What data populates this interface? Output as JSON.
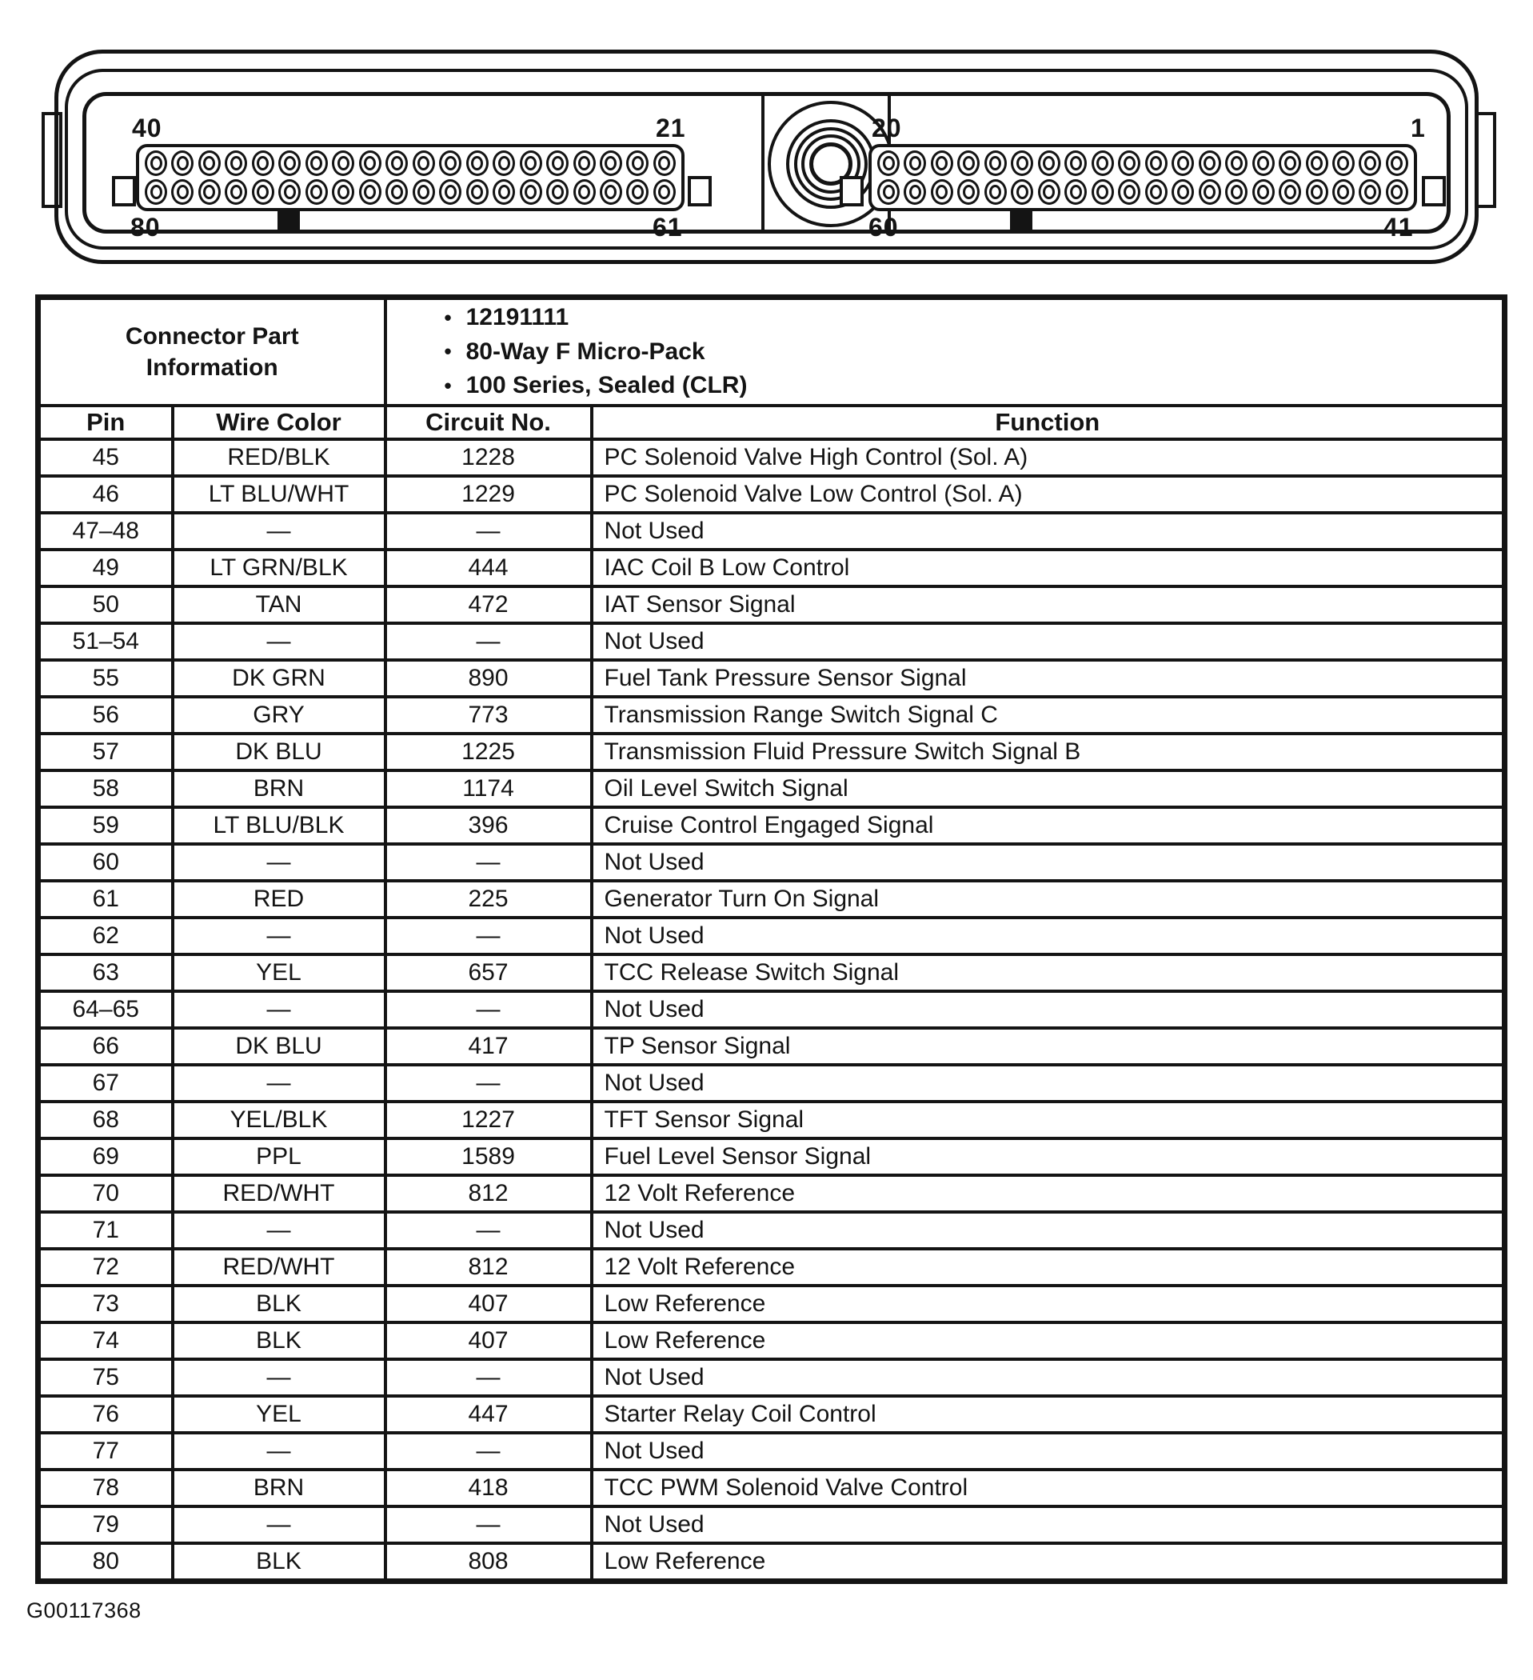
{
  "colors": {
    "ink": "#141414",
    "background": "#ffffff"
  },
  "connector": {
    "rows_per_block": 2,
    "pins_per_row": 20,
    "left_block": {
      "top_left": "40",
      "top_right": "21",
      "bottom_left": "80",
      "bottom_right": "61"
    },
    "right_block": {
      "top_left": "20",
      "top_right": "1",
      "bottom_left": "60",
      "bottom_right": "41"
    }
  },
  "part_info": {
    "title_line1": "Connector Part",
    "title_line2": "Information",
    "bullets": [
      "12191111",
      "80-Way F Micro-Pack",
      "100 Series, Sealed (CLR)"
    ],
    "bullet_glyph": "•"
  },
  "table": {
    "headers": [
      "Pin",
      "Wire Color",
      "Circuit No.",
      "Function"
    ],
    "rows": [
      [
        "45",
        "RED/BLK",
        "1228",
        "PC Solenoid Valve High Control (Sol. A)"
      ],
      [
        "46",
        "LT BLU/WHT",
        "1229",
        "PC Solenoid Valve Low Control (Sol. A)"
      ],
      [
        "47–48",
        "—",
        "—",
        "Not Used"
      ],
      [
        "49",
        "LT GRN/BLK",
        "444",
        "IAC Coil B Low Control"
      ],
      [
        "50",
        "TAN",
        "472",
        "IAT Sensor Signal"
      ],
      [
        "51–54",
        "—",
        "—",
        "Not Used"
      ],
      [
        "55",
        "DK GRN",
        "890",
        "Fuel Tank Pressure Sensor Signal"
      ],
      [
        "56",
        "GRY",
        "773",
        "Transmission Range Switch Signal C"
      ],
      [
        "57",
        "DK BLU",
        "1225",
        "Transmission Fluid Pressure Switch Signal B"
      ],
      [
        "58",
        "BRN",
        "1174",
        "Oil Level Switch Signal"
      ],
      [
        "59",
        "LT BLU/BLK",
        "396",
        "Cruise Control Engaged Signal"
      ],
      [
        "60",
        "—",
        "—",
        "Not Used"
      ],
      [
        "61",
        "RED",
        "225",
        "Generator Turn On Signal"
      ],
      [
        "62",
        "—",
        "—",
        "Not Used"
      ],
      [
        "63",
        "YEL",
        "657",
        "TCC Release Switch Signal"
      ],
      [
        "64–65",
        "—",
        "—",
        "Not Used"
      ],
      [
        "66",
        "DK BLU",
        "417",
        "TP Sensor Signal"
      ],
      [
        "67",
        "—",
        "—",
        "Not Used"
      ],
      [
        "68",
        "YEL/BLK",
        "1227",
        "TFT Sensor Signal"
      ],
      [
        "69",
        "PPL",
        "1589",
        "Fuel Level Sensor Signal"
      ],
      [
        "70",
        "RED/WHT",
        "812",
        "12 Volt Reference"
      ],
      [
        "71",
        "—",
        "—",
        "Not Used"
      ],
      [
        "72",
        "RED/WHT",
        "812",
        "12 Volt Reference"
      ],
      [
        "73",
        "BLK",
        "407",
        "Low Reference"
      ],
      [
        "74",
        "BLK",
        "407",
        "Low Reference"
      ],
      [
        "75",
        "—",
        "—",
        "Not Used"
      ],
      [
        "76",
        "YEL",
        "447",
        "Starter Relay Coil Control"
      ],
      [
        "77",
        "—",
        "—",
        "Not Used"
      ],
      [
        "78",
        "BRN",
        "418",
        "TCC PWM Solenoid Valve Control"
      ],
      [
        "79",
        "—",
        "—",
        "Not Used"
      ],
      [
        "80",
        "BLK",
        "808",
        "Low Reference"
      ]
    ]
  },
  "footer": {
    "figure_id": "G00117368"
  }
}
